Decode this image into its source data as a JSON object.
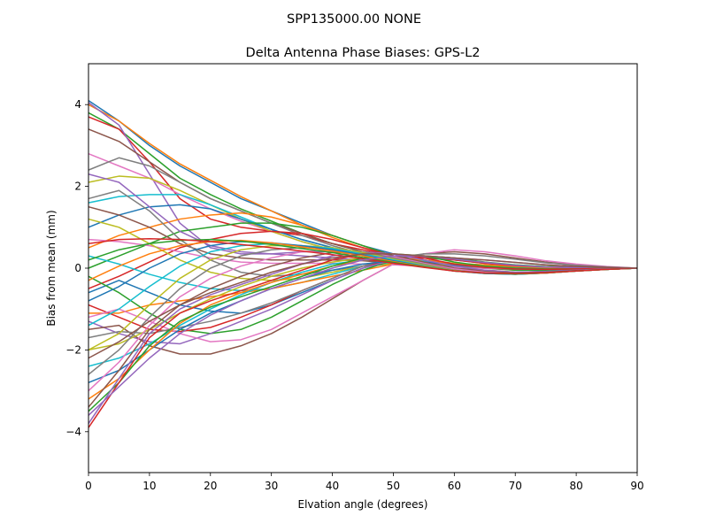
{
  "figure": {
    "suptitle": "SPP135000.00    NONE"
  },
  "chart_data": {
    "type": "line",
    "title": "Delta Antenna Phase Biases: GPS-L2",
    "xlabel": "Elvation angle (degrees)",
    "ylabel": "Bias from mean (mm)",
    "xlim": [
      0,
      90
    ],
    "ylim": [
      -5,
      5
    ],
    "xticks": [
      0,
      10,
      20,
      30,
      40,
      50,
      60,
      70,
      80,
      90
    ],
    "yticks": [
      -4,
      -2,
      0,
      2,
      4
    ],
    "grid": false,
    "legend": "none",
    "x": [
      0,
      5,
      10,
      15,
      20,
      25,
      30,
      35,
      40,
      45,
      50,
      55,
      60,
      65,
      70,
      75,
      80,
      85,
      90
    ],
    "color_cycle": [
      "#1f77b4",
      "#ff7f0e",
      "#2ca02c",
      "#d62728",
      "#9467bd",
      "#8c564b",
      "#e377c2",
      "#7f7f7f",
      "#bcbd22",
      "#17becf"
    ],
    "series": [
      {
        "values": [
          4.1,
          3.6,
          3.0,
          2.5,
          2.1,
          1.7,
          1.4,
          1.1,
          0.8,
          0.55,
          0.35,
          0.2,
          0.1,
          0.05,
          0.03,
          0.02,
          0.01,
          0.005,
          0
        ]
      },
      {
        "values": [
          4.0,
          3.6,
          3.05,
          2.55,
          2.15,
          1.75,
          1.4,
          1.05,
          0.75,
          0.5,
          0.3,
          0.15,
          0.05,
          0.0,
          -0.05,
          -0.03,
          -0.02,
          -0.01,
          0
        ]
      },
      {
        "values": [
          3.8,
          3.4,
          2.8,
          2.2,
          1.8,
          1.45,
          1.15,
          0.85,
          0.6,
          0.4,
          0.25,
          0.12,
          0.05,
          0.0,
          -0.05,
          -0.05,
          -0.03,
          -0.02,
          0
        ]
      },
      {
        "values": [
          3.7,
          3.4,
          2.6,
          1.7,
          1.2,
          1.0,
          0.9,
          0.8,
          0.6,
          0.45,
          0.3,
          0.2,
          0.1,
          0.05,
          0.0,
          -0.02,
          -0.02,
          -0.01,
          0
        ]
      },
      {
        "values": [
          4.05,
          3.5,
          2.3,
          1.1,
          0.5,
          0.35,
          0.35,
          0.4,
          0.4,
          0.35,
          0.25,
          0.15,
          0.1,
          0.05,
          0.03,
          0.02,
          0.01,
          0.0,
          0
        ]
      },
      {
        "values": [
          3.4,
          3.1,
          2.6,
          2.1,
          1.7,
          1.4,
          1.1,
          0.85,
          0.6,
          0.4,
          0.25,
          0.1,
          0.0,
          -0.05,
          -0.1,
          -0.08,
          -0.05,
          -0.02,
          0
        ]
      },
      {
        "values": [
          2.8,
          2.5,
          2.2,
          1.8,
          1.45,
          1.15,
          0.9,
          0.65,
          0.45,
          0.3,
          0.15,
          0.05,
          -0.05,
          -0.1,
          -0.12,
          -0.1,
          -0.06,
          -0.03,
          0
        ]
      },
      {
        "values": [
          2.4,
          2.7,
          2.5,
          2.1,
          1.7,
          1.4,
          1.1,
          0.8,
          0.55,
          0.35,
          0.2,
          0.05,
          -0.05,
          -0.1,
          -0.12,
          -0.1,
          -0.06,
          -0.03,
          0
        ]
      },
      {
        "values": [
          2.1,
          2.25,
          2.2,
          1.9,
          1.55,
          1.2,
          0.9,
          0.65,
          0.45,
          0.3,
          0.15,
          0.05,
          -0.05,
          -0.1,
          -0.12,
          -0.1,
          -0.06,
          -0.03,
          0
        ]
      },
      {
        "values": [
          1.6,
          1.75,
          1.8,
          1.8,
          1.55,
          1.25,
          0.95,
          0.7,
          0.5,
          0.3,
          0.15,
          0.05,
          -0.05,
          -0.1,
          -0.12,
          -0.1,
          -0.06,
          -0.03,
          0
        ]
      },
      {
        "values": [
          1.0,
          1.3,
          1.5,
          1.55,
          1.45,
          1.2,
          0.95,
          0.7,
          0.5,
          0.32,
          0.18,
          0.05,
          -0.05,
          -0.08,
          -0.1,
          -0.08,
          -0.05,
          -0.02,
          0
        ]
      },
      {
        "values": [
          0.5,
          0.8,
          1.0,
          1.2,
          1.3,
          1.35,
          1.25,
          1.05,
          0.8,
          0.55,
          0.3,
          0.1,
          -0.05,
          -0.1,
          -0.12,
          -0.1,
          -0.06,
          -0.03,
          0
        ]
      },
      {
        "values": [
          0.0,
          0.3,
          0.6,
          0.9,
          1.0,
          1.1,
          1.1,
          1.0,
          0.8,
          0.55,
          0.3,
          0.1,
          -0.05,
          -0.1,
          -0.12,
          -0.1,
          -0.06,
          -0.03,
          0
        ]
      },
      {
        "values": [
          -0.5,
          -0.2,
          0.15,
          0.5,
          0.7,
          0.85,
          0.9,
          0.85,
          0.7,
          0.5,
          0.3,
          0.1,
          -0.05,
          -0.1,
          -0.12,
          -0.1,
          -0.06,
          -0.03,
          0
        ]
      },
      {
        "values": [
          2.3,
          2.1,
          1.5,
          0.9,
          0.55,
          0.4,
          0.35,
          0.3,
          0.25,
          0.2,
          0.15,
          0.08,
          0.03,
          0.0,
          -0.02,
          -0.02,
          -0.01,
          -0.01,
          0
        ]
      },
      {
        "values": [
          1.5,
          1.3,
          1.0,
          0.6,
          0.35,
          0.25,
          0.2,
          0.2,
          0.2,
          0.18,
          0.12,
          0.06,
          0.02,
          0.0,
          -0.02,
          -0.02,
          -0.01,
          -0.01,
          0
        ]
      },
      {
        "values": [
          0.7,
          0.65,
          0.55,
          0.4,
          0.25,
          0.15,
          0.12,
          0.12,
          0.12,
          0.1,
          0.08,
          0.05,
          0.02,
          0.0,
          -0.02,
          -0.02,
          -0.01,
          -0.01,
          0
        ]
      },
      {
        "values": [
          1.7,
          1.9,
          1.4,
          0.7,
          0.2,
          -0.1,
          -0.2,
          -0.15,
          -0.05,
          0.05,
          0.1,
          0.1,
          0.05,
          0.02,
          0.0,
          -0.01,
          -0.01,
          0.0,
          0
        ]
      },
      {
        "values": [
          1.2,
          1.0,
          0.6,
          0.2,
          -0.1,
          -0.25,
          -0.3,
          -0.25,
          -0.1,
          0.05,
          0.12,
          0.12,
          0.08,
          0.04,
          0.02,
          0.01,
          0.0,
          0.0,
          0
        ]
      },
      {
        "values": [
          0.3,
          0.1,
          -0.15,
          -0.35,
          -0.5,
          -0.55,
          -0.5,
          -0.35,
          -0.15,
          0.05,
          0.15,
          0.15,
          0.1,
          0.05,
          0.02,
          0.01,
          0.0,
          0.0,
          0
        ]
      },
      {
        "values": [
          -0.6,
          -0.3,
          -0.6,
          -0.9,
          -1.05,
          -1.1,
          -0.9,
          -0.6,
          -0.3,
          0.0,
          0.2,
          0.25,
          0.2,
          0.12,
          0.06,
          0.03,
          0.01,
          0.0,
          0
        ]
      },
      {
        "values": [
          -1.1,
          -1.1,
          -0.9,
          -0.8,
          -0.7,
          -0.6,
          -0.5,
          -0.35,
          -0.2,
          -0.05,
          0.1,
          0.15,
          0.12,
          0.08,
          0.04,
          0.02,
          0.01,
          0.0,
          0
        ]
      },
      {
        "values": [
          -0.2,
          -0.6,
          -1.1,
          -1.5,
          -1.6,
          -1.5,
          -1.2,
          -0.8,
          -0.4,
          -0.05,
          0.2,
          0.3,
          0.25,
          0.15,
          0.08,
          0.04,
          0.02,
          0.01,
          0
        ]
      },
      {
        "values": [
          -0.9,
          -1.2,
          -1.5,
          -1.55,
          -1.45,
          -1.2,
          -0.9,
          -0.55,
          -0.25,
          0.05,
          0.2,
          0.25,
          0.2,
          0.12,
          0.06,
          0.03,
          0.01,
          0.0,
          0
        ]
      },
      {
        "values": [
          -1.3,
          -1.6,
          -1.8,
          -1.85,
          -1.6,
          -1.3,
          -1.0,
          -0.65,
          -0.3,
          0.0,
          0.2,
          0.28,
          0.22,
          0.14,
          0.07,
          0.03,
          0.01,
          0.0,
          0
        ]
      },
      {
        "values": [
          -1.5,
          -1.4,
          -1.9,
          -2.1,
          -2.1,
          -1.9,
          -1.6,
          -1.2,
          -0.75,
          -0.3,
          0.1,
          0.35,
          0.4,
          0.35,
          0.25,
          0.15,
          0.08,
          0.03,
          0
        ]
      },
      {
        "values": [
          -1.2,
          -1.0,
          -1.3,
          -1.6,
          -1.8,
          -1.75,
          -1.5,
          -1.1,
          -0.7,
          -0.3,
          0.1,
          0.35,
          0.45,
          0.4,
          0.3,
          0.18,
          0.1,
          0.04,
          0
        ]
      },
      {
        "values": [
          -1.7,
          -1.55,
          -1.6,
          -1.45,
          -1.3,
          -1.1,
          -0.85,
          -0.55,
          -0.25,
          0.05,
          0.25,
          0.35,
          0.35,
          0.3,
          0.22,
          0.13,
          0.07,
          0.03,
          0
        ]
      },
      {
        "values": [
          -2.0,
          -1.85,
          -1.5,
          -1.1,
          -0.75,
          -0.45,
          -0.2,
          0.0,
          0.15,
          0.25,
          0.25,
          0.2,
          0.12,
          0.05,
          0.0,
          -0.02,
          -0.02,
          -0.01,
          0
        ]
      },
      {
        "values": [
          -2.4,
          -2.2,
          -1.85,
          -1.4,
          -1.0,
          -0.65,
          -0.35,
          -0.1,
          0.1,
          0.2,
          0.22,
          0.18,
          0.1,
          0.04,
          0.0,
          -0.02,
          -0.02,
          -0.01,
          0
        ]
      },
      {
        "values": [
          -2.8,
          -2.5,
          -2.0,
          -1.5,
          -1.1,
          -0.8,
          -0.5,
          -0.25,
          -0.05,
          0.1,
          0.18,
          0.15,
          0.08,
          0.03,
          0.0,
          -0.02,
          -0.02,
          -0.01,
          0
        ]
      },
      {
        "values": [
          -3.2,
          -2.7,
          -2.0,
          -1.35,
          -0.9,
          -0.6,
          -0.35,
          -0.15,
          0.05,
          0.2,
          0.25,
          0.2,
          0.1,
          0.04,
          0.0,
          -0.02,
          -0.02,
          -0.01,
          0
        ]
      },
      {
        "values": [
          -3.5,
          -2.8,
          -1.9,
          -1.3,
          -0.95,
          -0.7,
          -0.45,
          -0.2,
          0.05,
          0.25,
          0.35,
          0.3,
          0.15,
          0.05,
          0.0,
          -0.02,
          -0.02,
          -0.01,
          0
        ]
      },
      {
        "values": [
          -3.9,
          -2.8,
          -1.7,
          -1.1,
          -0.8,
          -0.55,
          -0.3,
          -0.05,
          0.2,
          0.35,
          0.35,
          0.25,
          0.1,
          0.02,
          -0.02,
          -0.03,
          -0.02,
          -0.01,
          0
        ]
      },
      {
        "values": [
          -3.8,
          -2.7,
          -1.6,
          -1.0,
          -0.65,
          -0.4,
          -0.15,
          0.1,
          0.3,
          0.4,
          0.35,
          0.2,
          0.05,
          -0.05,
          -0.1,
          -0.08,
          -0.05,
          -0.02,
          0
        ]
      },
      {
        "values": [
          -3.4,
          -2.5,
          -1.5,
          -0.9,
          -0.5,
          -0.2,
          0.05,
          0.25,
          0.38,
          0.4,
          0.3,
          0.15,
          0.0,
          -0.08,
          -0.12,
          -0.1,
          -0.06,
          -0.03,
          0
        ]
      },
      {
        "values": [
          -3.0,
          -2.3,
          -1.4,
          -0.7,
          -0.25,
          0.05,
          0.25,
          0.4,
          0.45,
          0.4,
          0.28,
          0.12,
          -0.02,
          -0.1,
          -0.14,
          -0.12,
          -0.07,
          -0.03,
          0
        ]
      },
      {
        "values": [
          -2.6,
          -2.0,
          -1.2,
          -0.5,
          0.0,
          0.3,
          0.45,
          0.5,
          0.48,
          0.4,
          0.25,
          0.1,
          -0.05,
          -0.12,
          -0.15,
          -0.12,
          -0.07,
          -0.03,
          0
        ]
      },
      {
        "values": [
          -2.0,
          -1.6,
          -0.9,
          -0.25,
          0.2,
          0.45,
          0.55,
          0.55,
          0.5,
          0.38,
          0.22,
          0.08,
          -0.06,
          -0.13,
          -0.15,
          -0.12,
          -0.07,
          -0.03,
          0
        ]
      },
      {
        "values": [
          -1.4,
          -1.0,
          -0.45,
          0.05,
          0.4,
          0.55,
          0.6,
          0.55,
          0.48,
          0.35,
          0.2,
          0.06,
          -0.07,
          -0.13,
          -0.15,
          -0.12,
          -0.07,
          -0.03,
          0
        ]
      },
      {
        "values": [
          -0.8,
          -0.45,
          0.0,
          0.35,
          0.55,
          0.65,
          0.62,
          0.55,
          0.45,
          0.32,
          0.18,
          0.05,
          -0.07,
          -0.13,
          -0.15,
          -0.12,
          -0.07,
          -0.03,
          0
        ]
      },
      {
        "values": [
          -0.3,
          0.05,
          0.35,
          0.55,
          0.65,
          0.68,
          0.62,
          0.52,
          0.42,
          0.3,
          0.16,
          0.04,
          -0.07,
          -0.12,
          -0.14,
          -0.12,
          -0.07,
          -0.03,
          0
        ]
      },
      {
        "values": [
          0.2,
          0.45,
          0.6,
          0.68,
          0.7,
          0.66,
          0.58,
          0.48,
          0.38,
          0.26,
          0.14,
          0.03,
          -0.07,
          -0.12,
          -0.14,
          -0.11,
          -0.07,
          -0.03,
          0
        ]
      },
      {
        "values": [
          0.6,
          0.7,
          0.72,
          0.7,
          0.65,
          0.58,
          0.5,
          0.42,
          0.33,
          0.23,
          0.12,
          0.02,
          -0.07,
          -0.12,
          -0.13,
          -0.11,
          -0.07,
          -0.03,
          0
        ]
      },
      {
        "values": [
          -3.6,
          -2.9,
          -2.2,
          -1.6,
          -1.15,
          -0.8,
          -0.5,
          -0.25,
          0.0,
          0.2,
          0.3,
          0.3,
          0.25,
          0.2,
          0.14,
          0.08,
          0.04,
          0.02,
          0
        ]
      },
      {
        "values": [
          -2.2,
          -1.8,
          -1.3,
          -0.9,
          -0.6,
          -0.35,
          -0.1,
          0.1,
          0.25,
          0.35,
          0.35,
          0.3,
          0.25,
          0.2,
          0.14,
          0.08,
          0.04,
          0.02,
          0
        ]
      }
    ]
  }
}
